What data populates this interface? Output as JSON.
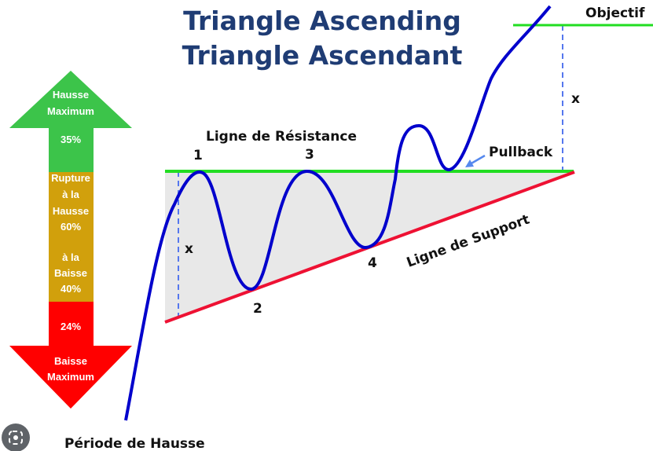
{
  "title": {
    "line1": "Triangle Ascending",
    "line2": "Triangle Ascendant"
  },
  "labels": {
    "objective": "Objectif",
    "resistance": "Ligne de Résistance",
    "support": "Ligne de Support",
    "pullback": "Pullback",
    "period": "Période de Hausse",
    "x_left": "x",
    "x_right": "x",
    "points": [
      "1",
      "2",
      "3",
      "4"
    ]
  },
  "arrow": {
    "up": {
      "line1": "Hausse",
      "line2": "Maximum",
      "pct": "35%"
    },
    "middle": {
      "line1": "Rupture",
      "line2": "à la",
      "line3": "Hausse",
      "pct_up": "60%",
      "line4": "à la",
      "line5": "Baisse",
      "pct_down": "40%"
    },
    "down": {
      "pct": "24%",
      "line1": "Baisse",
      "line2": "Maximum"
    }
  },
  "colors": {
    "title": "#1f3c74",
    "resistance": "#22dd22",
    "support": "#ee1133",
    "price": "#0000cc",
    "arrow_up": "#3cc44a",
    "arrow_mid": "#d1a00c",
    "arrow_down": "#ff0000",
    "fill": "#e8e8e8",
    "dashed": "#5577ee"
  },
  "icons": {
    "lens": "lens-search-icon"
  }
}
